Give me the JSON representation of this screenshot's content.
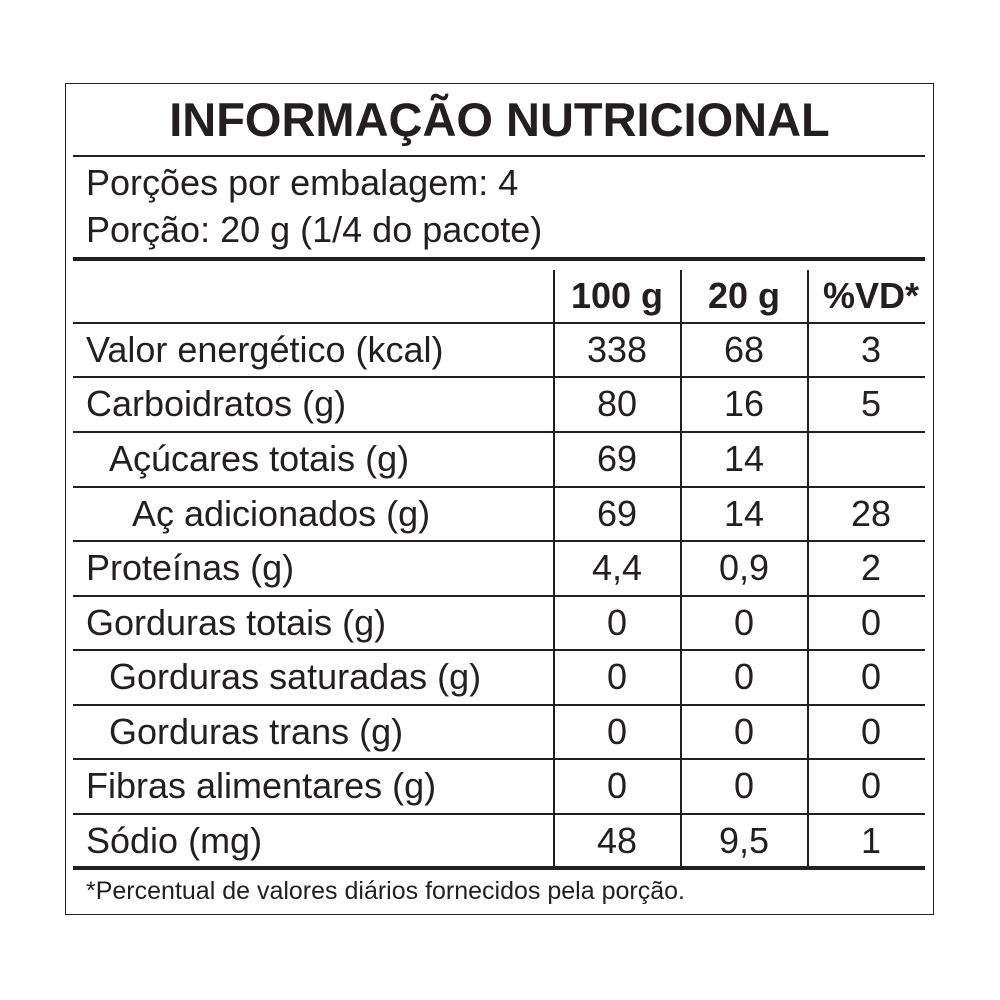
{
  "title": "INFORMAÇÃO NUTRICIONAL",
  "servings_per_package": "Porções por embalagem: 4",
  "serving_size": "Porção: 20 g (1/4 do pacote)",
  "columns": [
    "100 g",
    "20 g",
    "%VD*"
  ],
  "rows": [
    {
      "label": "Valor energético (kcal)",
      "indent": 0,
      "per100g": "338",
      "per_serving": "68",
      "dv": "3"
    },
    {
      "label": "Carboidratos (g)",
      "indent": 0,
      "per100g": "80",
      "per_serving": "16",
      "dv": "5"
    },
    {
      "label": "Açúcares totais (g)",
      "indent": 1,
      "per100g": "69",
      "per_serving": "14",
      "dv": ""
    },
    {
      "label": "Aç adicionados (g)",
      "indent": 2,
      "per100g": "69",
      "per_serving": "14",
      "dv": "28"
    },
    {
      "label": "Proteínas (g)",
      "indent": 0,
      "per100g": "4,4",
      "per_serving": "0,9",
      "dv": "2"
    },
    {
      "label": "Gorduras totais (g)",
      "indent": 0,
      "per100g": "0",
      "per_serving": "0",
      "dv": "0"
    },
    {
      "label": "Gorduras saturadas (g)",
      "indent": 1,
      "per100g": "0",
      "per_serving": "0",
      "dv": "0"
    },
    {
      "label": "Gorduras trans (g)",
      "indent": 1,
      "per100g": "0",
      "per_serving": "0",
      "dv": "0"
    },
    {
      "label": "Fibras alimentares (g)",
      "indent": 0,
      "per100g": "0",
      "per_serving": "0",
      "dv": "0"
    },
    {
      "label": "Sódio (mg)",
      "indent": 0,
      "per100g": "48",
      "per_serving": "9,5",
      "dv": "1"
    }
  ],
  "footnote": "*Percentual de valores diários fornecidos pela porção."
}
